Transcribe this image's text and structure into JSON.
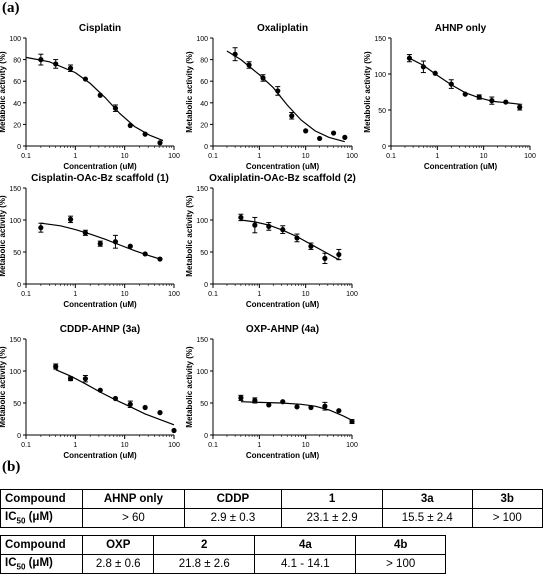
{
  "labels": {
    "a": "(a)",
    "b": "(b)"
  },
  "chart_data": [
    {
      "type": "scatter",
      "title": "Cisplatin",
      "xlabel": "Concentration (uM)",
      "ylabel": "Metabolic activity (%)",
      "xscale": "log",
      "xlim": [
        0.1,
        100
      ],
      "ylim": [
        0,
        100
      ],
      "xticks": [
        0.1,
        1,
        10,
        100
      ],
      "yticks": [
        0,
        20,
        40,
        60,
        80,
        100
      ],
      "points": [
        {
          "x": 0.2,
          "y": 80,
          "err": 5
        },
        {
          "x": 0.4,
          "y": 76,
          "err": 4
        },
        {
          "x": 0.8,
          "y": 72,
          "err": 3
        },
        {
          "x": 1.6,
          "y": 62,
          "err": 0
        },
        {
          "x": 3.2,
          "y": 47,
          "err": 0
        },
        {
          "x": 6.5,
          "y": 35,
          "err": 3
        },
        {
          "x": 13,
          "y": 19,
          "err": 0
        },
        {
          "x": 26,
          "y": 11,
          "err": 0
        },
        {
          "x": 52,
          "y": 3,
          "err": 0
        }
      ],
      "fit": [
        [
          0.1,
          82
        ],
        [
          0.3,
          78
        ],
        [
          1,
          68
        ],
        [
          2,
          58
        ],
        [
          4,
          45
        ],
        [
          8,
          30
        ],
        [
          16,
          18
        ],
        [
          32,
          10
        ],
        [
          60,
          5
        ]
      ]
    },
    {
      "type": "scatter",
      "title": "Oxaliplatin",
      "xlabel": "Concentration (uM)",
      "ylabel": "Metabolic activity (%)",
      "xscale": "log",
      "xlim": [
        0.1,
        100
      ],
      "ylim": [
        0,
        100
      ],
      "xticks": [
        0.1,
        1,
        10,
        100
      ],
      "yticks": [
        0,
        20,
        40,
        60,
        80,
        100
      ],
      "points": [
        {
          "x": 0.3,
          "y": 85,
          "err": 6
        },
        {
          "x": 0.6,
          "y": 75,
          "err": 3
        },
        {
          "x": 1.2,
          "y": 63,
          "err": 3
        },
        {
          "x": 2.5,
          "y": 51,
          "err": 4
        },
        {
          "x": 5,
          "y": 28,
          "err": 3
        },
        {
          "x": 10,
          "y": 14,
          "err": 0
        },
        {
          "x": 20,
          "y": 7,
          "err": 0
        },
        {
          "x": 40,
          "y": 12,
          "err": 0
        },
        {
          "x": 70,
          "y": 8,
          "err": 0
        }
      ],
      "fit": [
        [
          0.2,
          88
        ],
        [
          0.4,
          80
        ],
        [
          1,
          66
        ],
        [
          2,
          54
        ],
        [
          4,
          38
        ],
        [
          8,
          24
        ],
        [
          16,
          14
        ],
        [
          32,
          8
        ],
        [
          70,
          4
        ]
      ]
    },
    {
      "type": "scatter",
      "title": "AHNP only",
      "xlabel": "Concentration (uM)",
      "ylabel": "Metabolic activity (%)",
      "xscale": "log",
      "xlim": [
        0.1,
        100
      ],
      "ylim": [
        0,
        150
      ],
      "xticks": [
        0.1,
        1,
        10,
        100
      ],
      "yticks": [
        0,
        50,
        100,
        150
      ],
      "points": [
        {
          "x": 0.25,
          "y": 122,
          "err": 5
        },
        {
          "x": 0.5,
          "y": 110,
          "err": 8
        },
        {
          "x": 0.9,
          "y": 101,
          "err": 0
        },
        {
          "x": 2,
          "y": 86,
          "err": 6
        },
        {
          "x": 4,
          "y": 72,
          "err": 0
        },
        {
          "x": 8,
          "y": 68,
          "err": 3
        },
        {
          "x": 15,
          "y": 63,
          "err": 5
        },
        {
          "x": 30,
          "y": 61,
          "err": 0
        },
        {
          "x": 60,
          "y": 54,
          "err": 4
        }
      ],
      "fit": [
        [
          0.25,
          122
        ],
        [
          0.5,
          112
        ],
        [
          1,
          98
        ],
        [
          2,
          85
        ],
        [
          4,
          74
        ],
        [
          8,
          67
        ],
        [
          16,
          62
        ],
        [
          32,
          60
        ],
        [
          60,
          58
        ]
      ]
    },
    {
      "type": "scatter",
      "title": "Cisplatin-OAc-Bz scaffold (1)",
      "xlabel": "Concentration (uM)",
      "ylabel": "Metabolic activity (%)",
      "xscale": "log",
      "xlim": [
        0.1,
        100
      ],
      "ylim": [
        0,
        150
      ],
      "xticks": [
        0.1,
        1,
        10,
        100
      ],
      "yticks": [
        0,
        50,
        100,
        150
      ],
      "points": [
        {
          "x": 0.2,
          "y": 88,
          "err": 7
        },
        {
          "x": 0.8,
          "y": 101,
          "err": 5
        },
        {
          "x": 1.6,
          "y": 80,
          "err": 4
        },
        {
          "x": 3.2,
          "y": 63,
          "err": 4
        },
        {
          "x": 6.5,
          "y": 66,
          "err": 10
        },
        {
          "x": 13,
          "y": 59,
          "err": 0
        },
        {
          "x": 26,
          "y": 47,
          "err": 0
        },
        {
          "x": 52,
          "y": 39,
          "err": 0
        }
      ],
      "fit": [
        [
          0.2,
          95
        ],
        [
          0.5,
          91
        ],
        [
          1,
          85
        ],
        [
          2,
          78
        ],
        [
          4,
          70
        ],
        [
          8,
          61
        ],
        [
          16,
          52
        ],
        [
          32,
          44
        ],
        [
          52,
          39
        ]
      ]
    },
    {
      "type": "scatter",
      "title": "Oxaliplatin-OAc-Bz scaffold (2)",
      "xlabel": "Concentration (uM)",
      "ylabel": "Metabolic activity (%)",
      "xscale": "log",
      "xlim": [
        0.1,
        100
      ],
      "ylim": [
        0,
        150
      ],
      "xticks": [
        0.1,
        1,
        10,
        100
      ],
      "yticks": [
        0,
        50,
        100,
        150
      ],
      "points": [
        {
          "x": 0.4,
          "y": 104,
          "err": 5
        },
        {
          "x": 0.8,
          "y": 92,
          "err": 12
        },
        {
          "x": 1.6,
          "y": 90,
          "err": 6
        },
        {
          "x": 3.2,
          "y": 85,
          "err": 6
        },
        {
          "x": 6.5,
          "y": 72,
          "err": 6
        },
        {
          "x": 13,
          "y": 59,
          "err": 5
        },
        {
          "x": 26,
          "y": 40,
          "err": 8
        },
        {
          "x": 52,
          "y": 46,
          "err": 8
        }
      ],
      "fit": [
        [
          0.4,
          100
        ],
        [
          0.8,
          97
        ],
        [
          1.6,
          92
        ],
        [
          3.2,
          84
        ],
        [
          6.5,
          74
        ],
        [
          13,
          62
        ],
        [
          26,
          50
        ],
        [
          52,
          38
        ]
      ]
    },
    {
      "type": "scatter",
      "title": "CDDP-AHNP (3a)",
      "xlabel": "Concentration (uM)",
      "ylabel": "Metabolic activity (%)",
      "xscale": "log",
      "xlim": [
        0.1,
        100
      ],
      "ylim": [
        0,
        150
      ],
      "xticks": [
        0.1,
        1,
        10,
        100
      ],
      "yticks": [
        0,
        50,
        100,
        150
      ],
      "points": [
        {
          "x": 0.4,
          "y": 107,
          "err": 4
        },
        {
          "x": 0.8,
          "y": 88,
          "err": 3
        },
        {
          "x": 1.6,
          "y": 88,
          "err": 5
        },
        {
          "x": 3.2,
          "y": 70,
          "err": 0
        },
        {
          "x": 6.5,
          "y": 57,
          "err": 0
        },
        {
          "x": 13,
          "y": 48,
          "err": 5
        },
        {
          "x": 26,
          "y": 43,
          "err": 0
        },
        {
          "x": 52,
          "y": 35,
          "err": 0
        },
        {
          "x": 100,
          "y": 7,
          "err": 0
        }
      ],
      "fit": [
        [
          0.4,
          102
        ],
        [
          0.8,
          92
        ],
        [
          1.6,
          80
        ],
        [
          3.2,
          67
        ],
        [
          6.5,
          55
        ],
        [
          13,
          44
        ],
        [
          26,
          33
        ],
        [
          52,
          24
        ],
        [
          100,
          16
        ]
      ]
    },
    {
      "type": "scatter",
      "title": "OXP-AHNP (4a)",
      "xlabel": "Concentration (uM)",
      "ylabel": "Metabolic activity (%)",
      "xscale": "log",
      "xlim": [
        0.1,
        100
      ],
      "ylim": [
        0,
        150
      ],
      "xticks": [
        0.1,
        1,
        10,
        100
      ],
      "yticks": [
        0,
        50,
        100,
        150
      ],
      "points": [
        {
          "x": 0.4,
          "y": 58,
          "err": 4
        },
        {
          "x": 0.8,
          "y": 54,
          "err": 4
        },
        {
          "x": 1.6,
          "y": 47,
          "err": 0
        },
        {
          "x": 3.2,
          "y": 52,
          "err": 0
        },
        {
          "x": 6.5,
          "y": 44,
          "err": 0
        },
        {
          "x": 13,
          "y": 43,
          "err": 0
        },
        {
          "x": 26,
          "y": 45,
          "err": 6
        },
        {
          "x": 52,
          "y": 38,
          "err": 0
        },
        {
          "x": 100,
          "y": 21,
          "err": 3
        }
      ],
      "fit": [
        [
          0.4,
          52
        ],
        [
          1,
          51
        ],
        [
          3,
          50
        ],
        [
          8,
          48
        ],
        [
          16,
          45
        ],
        [
          32,
          39
        ],
        [
          64,
          30
        ],
        [
          100,
          23
        ]
      ]
    }
  ],
  "table1": {
    "header": [
      "Compound",
      "AHNP only",
      "CDDP",
      "1",
      "3a",
      "3b"
    ],
    "row_label": "IC",
    "row_sub": "50",
    "row_unit": " (μM)",
    "values": [
      "> 60",
      "2.9 ± 0.3",
      "23.1 ± 2.9",
      "15.5 ± 2.4",
      "> 100"
    ]
  },
  "table2": {
    "header": [
      "Compound",
      "OXP",
      "2",
      "4a",
      "4b"
    ],
    "row_label": "IC",
    "row_sub": "50",
    "row_unit": " (μM)",
    "values": [
      "2.8 ± 0.6",
      "21.8 ± 2.6",
      "4.1 - 14.1",
      "> 100"
    ]
  }
}
